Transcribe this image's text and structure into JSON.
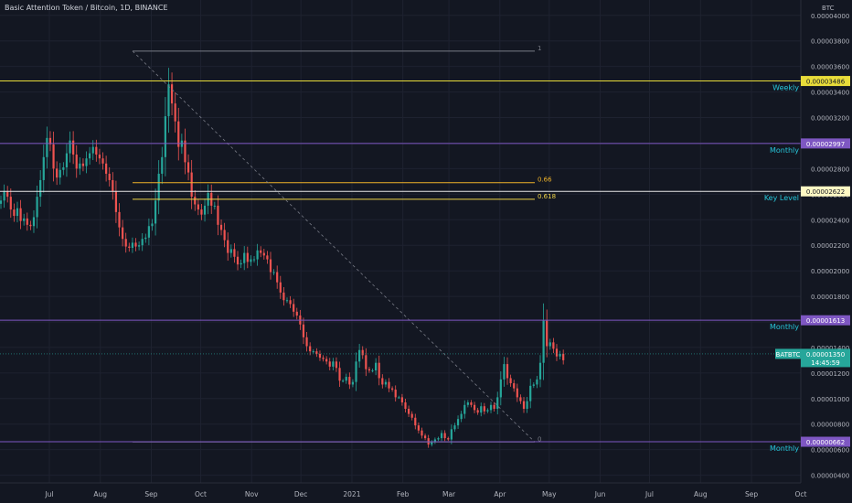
{
  "header": {
    "title": "Basic Attention Token / Bitcoin, 1D, BINANCE"
  },
  "price_scale": {
    "currency": "BTC",
    "ticks": [
      "0.00004000",
      "0.00003800",
      "0.00003600",
      "0.00003400",
      "0.00003200",
      "0.00003000",
      "0.00002800",
      "0.00002600",
      "0.00002400",
      "0.00002200",
      "0.00002000",
      "0.00001800",
      "0.00001600",
      "0.00001400",
      "0.00001200",
      "0.00001000",
      "0.00000800",
      "0.00000600",
      "0.00000400"
    ]
  },
  "time_scale": {
    "labels": [
      "Jul",
      "Aug",
      "Sep",
      "Oct",
      "Nov",
      "Dec",
      "2021",
      "Feb",
      "Mar",
      "Apr",
      "May",
      "Jun",
      "Jul",
      "Aug",
      "Sep",
      "Oct"
    ]
  },
  "levels": [
    {
      "price": 3.486e-05,
      "label": "0.00003486",
      "note": "Weekly",
      "color": "#e8dc3a"
    },
    {
      "price": 2.997e-05,
      "label": "0.00002997",
      "note": "Monthly",
      "color": "#7e57c2"
    },
    {
      "price": 2.622e-05,
      "label": "0.00002622",
      "note": "Key Level",
      "color": "#e6e6e6"
    },
    {
      "price": 1.613e-05,
      "label": "0.00001613",
      "note": "Monthly",
      "color": "#7e57c2"
    },
    {
      "price": 6.62e-06,
      "label": "0.00000662",
      "note": "Monthly",
      "color": "#7e57c2"
    }
  ],
  "fibonacci": [
    {
      "level": "1",
      "price": 3.72e-05
    },
    {
      "level": "0.66",
      "price": 2.69e-05
    },
    {
      "level": "0.618",
      "price": 2.56e-05
    },
    {
      "level": "0",
      "price": 6.6e-06
    }
  ],
  "last_price": {
    "symbol": "BATBTC",
    "price": "0.00001350",
    "countdown": "14:45:59",
    "color": "#26a69a"
  },
  "chart_data": {
    "type": "candlestick",
    "ylabel": "BTC",
    "ylim": [
      3.4e-06,
      4.12e-05
    ],
    "x_range": [
      "2020-06-01",
      "2021-10-01"
    ],
    "close": [
      2.55e-05,
      2.62e-05,
      2.58e-05,
      2.48e-05,
      2.43e-05,
      2.49e-05,
      2.39e-05,
      2.41e-05,
      2.36e-05,
      2.35e-05,
      2.42e-05,
      2.58e-05,
      2.71e-05,
      2.89e-05,
      3.04e-05,
      2.99e-05,
      2.8e-05,
      2.73e-05,
      2.79e-05,
      2.81e-05,
      2.92e-05,
      3.02e-05,
      2.91e-05,
      2.8e-05,
      2.84e-05,
      2.82e-05,
      2.88e-05,
      2.92e-05,
      2.97e-05,
      2.91e-05,
      2.88e-05,
      2.84e-05,
      2.76e-05,
      2.71e-05,
      2.62e-05,
      2.46e-05,
      2.34e-05,
      2.25e-05,
      2.19e-05,
      2.18e-05,
      2.22e-05,
      2.19e-05,
      2.2e-05,
      2.25e-05,
      2.26e-05,
      2.35e-05,
      2.37e-05,
      2.55e-05,
      2.76e-05,
      2.89e-05,
      3.21e-05,
      3.46e-05,
      3.31e-05,
      3.17e-05,
      2.97e-05,
      3.02e-05,
      2.85e-05,
      2.77e-05,
      2.58e-05,
      2.52e-05,
      2.48e-05,
      2.44e-05,
      2.51e-05,
      2.61e-05,
      2.51e-05,
      2.51e-05,
      2.36e-05,
      2.32e-05,
      2.24e-05,
      2.14e-05,
      2.17e-05,
      2.11e-05,
      2.05e-05,
      2.06e-05,
      2.14e-05,
      2.07e-05,
      2.09e-05,
      2.09e-05,
      2.16e-05,
      2.14e-05,
      2.12e-05,
      2.09e-05,
      1.99e-05,
      1.99e-05,
      1.91e-05,
      1.83e-05,
      1.77e-05,
      1.77e-05,
      1.74e-05,
      1.68e-05,
      1.65e-05,
      1.58e-05,
      1.48e-05,
      1.41e-05,
      1.37e-05,
      1.37e-05,
      1.35e-05,
      1.32e-05,
      1.31e-05,
      1.29e-05,
      1.25e-05,
      1.29e-05,
      1.24e-05,
      1.14e-05,
      1.14e-05,
      1.17e-05,
      1.11e-05,
      1.13e-05,
      1.29e-05,
      1.38e-05,
      1.34e-05,
      1.23e-05,
      1.22e-05,
      1.22e-05,
      1.28e-05,
      1.16e-05,
      1.11e-05,
      1.13e-05,
      1.08e-05,
      1.07e-05,
      1.01e-05,
      1.01e-05,
      9.7e-06,
      9.2e-06,
      8.8e-06,
      8.5e-06,
      7.9e-06,
      7.5e-06,
      7.1e-06,
      6.9e-06,
      6.4e-06,
      6.6e-06,
      6.8e-06,
      6.9e-06,
      7.3e-06,
      6.9e-06,
      6.8e-06,
      7.6e-06,
      7.9e-06,
      8.4e-06,
      8.8e-06,
      9.5e-06,
      9.7e-06,
      9.5e-06,
      9.1e-06,
      8.9e-06,
      9.4e-06,
      9e-06,
      9.1e-06,
      9.5e-06,
      9.2e-06,
      1.01e-05,
      1.15e-05,
      1.27e-05,
      1.16e-05,
      1.12e-05,
      1.08e-05,
      1.01e-05,
      9.8e-06,
      9.2e-06,
      9.8e-06,
      1.1e-05,
      1.11e-05,
      1.15e-05,
      1.28e-05,
      1.61e-05,
      1.41e-05,
      1.44e-05,
      1.39e-05,
      1.33e-05,
      1.35e-05,
      1.3e-05
    ]
  }
}
